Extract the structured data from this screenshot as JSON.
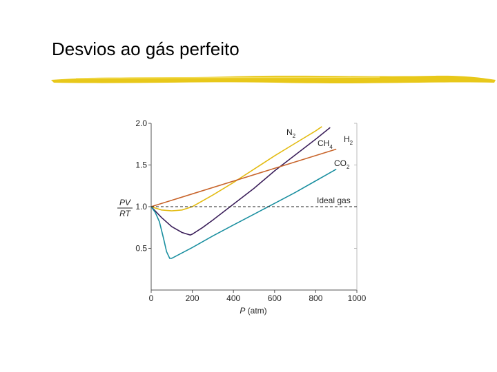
{
  "slide": {
    "title": "Desvios ao gás perfeito"
  },
  "colors": {
    "rule": "#e8c81a",
    "axis": "#555555",
    "N2": "#e3bb12",
    "CH4": "#3b1f5a",
    "H2": "#c8642a",
    "CO2": "#1a8fa0",
    "ideal": "#222222"
  },
  "chart_data": {
    "type": "line",
    "xlabel": "P (atm)",
    "ylabel_num": "PV",
    "ylabel_den": "RT",
    "xlim": [
      0,
      1000
    ],
    "ylim": [
      0,
      2.0
    ],
    "xticks": [
      "0",
      "200",
      "400",
      "600",
      "800",
      "1000"
    ],
    "yticks": [
      "0.5",
      "1.0",
      "1.5",
      "2.0"
    ],
    "series": [
      {
        "key": "N2",
        "name": "N",
        "sub": "2",
        "x": [
          0,
          50,
          100,
          150,
          200,
          300,
          400,
          500,
          600,
          700,
          800,
          830
        ],
        "y": [
          1.0,
          0.96,
          0.95,
          0.96,
          1.0,
          1.14,
          1.29,
          1.45,
          1.61,
          1.76,
          1.91,
          1.96
        ]
      },
      {
        "key": "CH4",
        "name": "CH",
        "sub": "4",
        "x": [
          0,
          50,
          100,
          150,
          190,
          200,
          250,
          300,
          400,
          500,
          600,
          700,
          800,
          870
        ],
        "y": [
          1.0,
          0.87,
          0.76,
          0.69,
          0.66,
          0.67,
          0.75,
          0.84,
          1.03,
          1.22,
          1.43,
          1.62,
          1.81,
          1.95
        ]
      },
      {
        "key": "H2",
        "name": "H",
        "sub": "2",
        "x": [
          0,
          900
        ],
        "y": [
          1.0,
          1.69
        ]
      },
      {
        "key": "CO2",
        "name": "CO",
        "sub": "2",
        "x": [
          0,
          20,
          40,
          60,
          75,
          90,
          100,
          200,
          300,
          400,
          500,
          600,
          700,
          800,
          900
        ],
        "y": [
          1.0,
          0.93,
          0.82,
          0.62,
          0.46,
          0.38,
          0.38,
          0.51,
          0.65,
          0.78,
          0.91,
          1.04,
          1.17,
          1.31,
          1.45
        ]
      },
      {
        "key": "ideal",
        "name": "Ideal gas",
        "sub": "",
        "x": [
          0,
          1000
        ],
        "y": [
          1.0,
          1.0
        ]
      }
    ]
  }
}
